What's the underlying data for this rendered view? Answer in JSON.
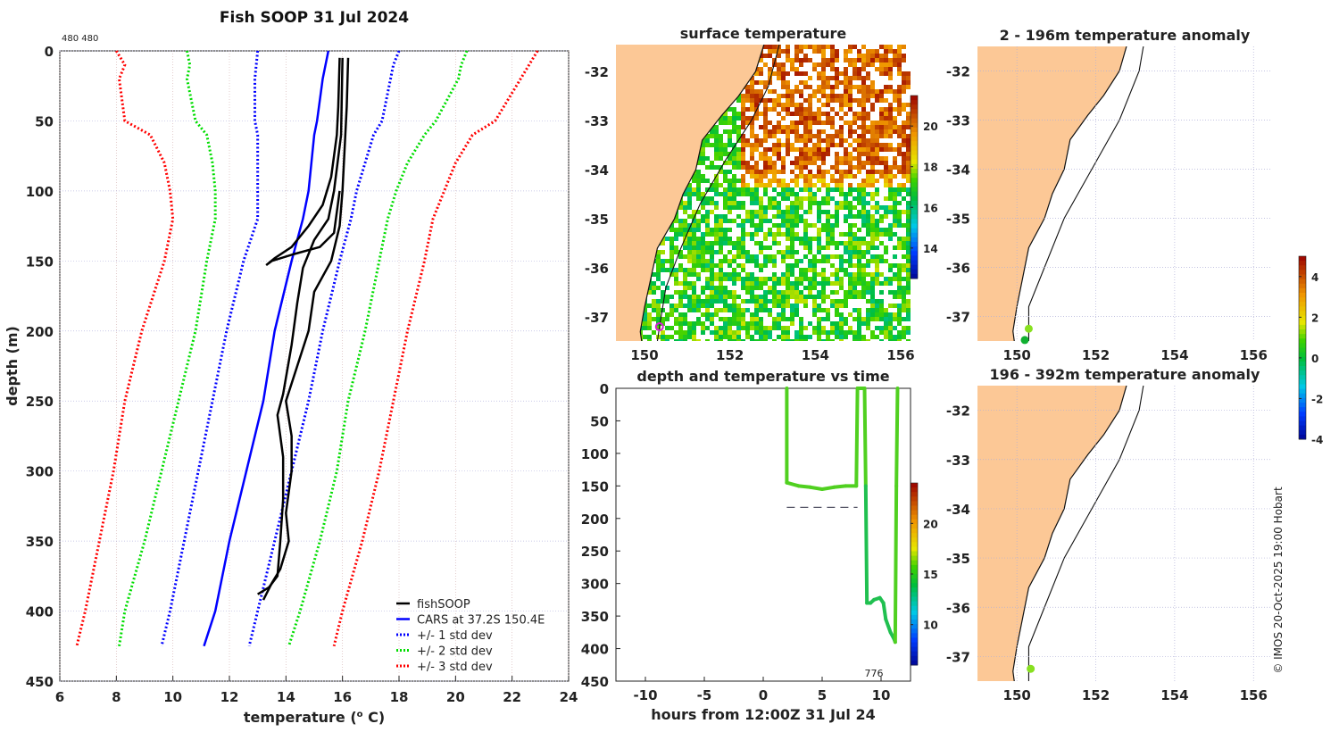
{
  "header": {
    "title": "Fish SOOP 31 Jul 2024",
    "corner_label": "480 480"
  },
  "copyright": "© IMOS 20-Oct-2025 19:00 Hobart",
  "colors": {
    "fish": "#000000",
    "cars": "#0000ff",
    "std1": "#0000ff",
    "std2": "#00dd00",
    "std3": "#ff0000",
    "land": "#fcc896",
    "grid": "#b0b0d8"
  },
  "chart_data": [
    {
      "type": "line",
      "id": "profile",
      "xlabel": "temperature (",
      "xlabel_sup": "o",
      "xlabel_end": " C)",
      "ylabel": "depth (m)",
      "xlim": [
        6,
        24
      ],
      "ylim": [
        0,
        450
      ],
      "xticks": [
        "6",
        "8",
        "10",
        "12",
        "14",
        "16",
        "18",
        "20",
        "22",
        "24"
      ],
      "yticks": [
        "0",
        "50",
        "100",
        "150",
        "200",
        "250",
        "300",
        "350",
        "400",
        "450"
      ],
      "grid": true,
      "legend_position": "bottom-right",
      "legend": [
        "fishSOOP",
        "CARS at 37.2S 150.4E",
        "+/- 1 std dev",
        "+/- 2 std dev",
        "+/- 3 std dev"
      ],
      "depths": [
        0,
        10,
        20,
        50,
        60,
        80,
        100,
        120,
        150,
        200,
        250,
        300,
        350,
        400,
        425
      ],
      "cars": [
        15.5,
        15.4,
        15.3,
        15.1,
        15.0,
        14.9,
        14.8,
        14.6,
        14.2,
        13.6,
        13.2,
        12.6,
        12.0,
        11.5,
        11.1
      ],
      "std1_lo": [
        13.0,
        12.95,
        12.9,
        12.9,
        13.0,
        13.0,
        13.0,
        13.0,
        12.5,
        11.9,
        11.4,
        10.9,
        10.4,
        9.9,
        9.6
      ],
      "std1_hi": [
        18.0,
        17.8,
        17.7,
        17.4,
        17.1,
        16.8,
        16.5,
        16.3,
        15.9,
        15.3,
        14.8,
        14.2,
        13.6,
        13.0,
        12.7
      ],
      "std2_lo": [
        10.5,
        10.6,
        10.5,
        10.8,
        11.2,
        11.4,
        11.5,
        11.5,
        11.2,
        10.8,
        10.2,
        9.6,
        9.0,
        8.3,
        8.1
      ],
      "std2_hi": [
        20.4,
        20.2,
        20.1,
        19.3,
        18.9,
        18.3,
        17.9,
        17.6,
        17.3,
        16.8,
        16.2,
        15.8,
        15.2,
        14.5,
        14.1
      ],
      "std3_lo": [
        8.0,
        8.3,
        8.1,
        8.3,
        9.2,
        9.7,
        9.9,
        10.0,
        9.7,
        8.9,
        8.3,
        7.9,
        7.4,
        6.9,
        6.6
      ],
      "std3_hi": [
        22.9,
        22.6,
        22.3,
        21.4,
        20.6,
        20.0,
        19.6,
        19.2,
        18.9,
        18.3,
        17.8,
        17.3,
        16.7,
        16.0,
        15.7
      ],
      "fish_profiles": [
        [
          [
            16.2,
            5
          ],
          [
            16.15,
            40
          ],
          [
            16.1,
            60
          ],
          [
            16.0,
            100
          ],
          [
            15.9,
            125
          ],
          [
            15.6,
            150
          ],
          [
            15.0,
            172
          ],
          [
            14.8,
            200
          ],
          [
            14.4,
            225
          ],
          [
            14.0,
            250
          ],
          [
            14.2,
            275
          ],
          [
            14.2,
            300
          ],
          [
            14.0,
            330
          ],
          [
            14.1,
            350
          ],
          [
            13.8,
            370
          ],
          [
            13.5,
            380
          ],
          [
            13.2,
            392
          ]
        ],
        [
          [
            15.9,
            5
          ],
          [
            15.85,
            40
          ],
          [
            15.8,
            60
          ],
          [
            15.6,
            90
          ],
          [
            15.3,
            110
          ],
          [
            14.8,
            125
          ],
          [
            14.2,
            140
          ],
          [
            13.6,
            148
          ],
          [
            13.3,
            153
          ],
          [
            13.5,
            150
          ],
          [
            14.3,
            145
          ],
          [
            15.2,
            140
          ],
          [
            15.7,
            130
          ],
          [
            15.9,
            100
          ]
        ],
        [
          [
            16.0,
            5
          ],
          [
            15.95,
            60
          ],
          [
            15.7,
            100
          ],
          [
            15.5,
            120
          ],
          [
            15.0,
            135
          ],
          [
            14.6,
            155
          ],
          [
            14.4,
            180
          ],
          [
            14.2,
            210
          ],
          [
            13.9,
            245
          ],
          [
            13.7,
            260
          ],
          [
            13.9,
            290
          ],
          [
            13.9,
            320
          ],
          [
            13.8,
            350
          ],
          [
            13.7,
            375
          ],
          [
            13.4,
            383
          ],
          [
            13.0,
            388
          ]
        ]
      ]
    },
    {
      "type": "heatmap",
      "id": "sst",
      "title": "surface temperature",
      "lon_lim": [
        149.33,
        156.23
      ],
      "lat_lim": [
        -37.49,
        -31.45
      ],
      "xticks": [
        "150",
        "152",
        "154",
        "156"
      ],
      "yticks": [
        "-32",
        "-33",
        "-34",
        "-35",
        "-36",
        "-37"
      ],
      "colorbar_ticks": [
        "14",
        "16",
        "18",
        "20"
      ],
      "colorbar_range": [
        12.5,
        21.5
      ]
    },
    {
      "type": "line",
      "id": "depth_time",
      "title": "depth and temperature vs time",
      "xlabel": "hours from 12:00Z 31 Jul 24",
      "xlim": [
        -12.5,
        12.5
      ],
      "ylim": [
        0,
        450
      ],
      "xticks": [
        "-10",
        "-5",
        "0",
        "5",
        "10"
      ],
      "yticks": [
        "0",
        "50",
        "100",
        "150",
        "200",
        "250",
        "300",
        "350",
        "400",
        "450"
      ],
      "annotation": "776",
      "bottom_depth_line": {
        "depth": 183,
        "from": 2,
        "to": 8
      },
      "colorbar_ticks": [
        "10",
        "15",
        "20"
      ],
      "colorbar_range": [
        6,
        24
      ],
      "track": [
        [
          2,
          0
        ],
        [
          2,
          145
        ],
        [
          3,
          150
        ],
        [
          4,
          152
        ],
        [
          5,
          155
        ],
        [
          6,
          152
        ],
        [
          7,
          150
        ],
        [
          7.9,
          150
        ],
        [
          8,
          0
        ],
        [
          8.6,
          0
        ],
        [
          8.7,
          150
        ],
        [
          8.8,
          330
        ],
        [
          9.1,
          330
        ],
        [
          9.4,
          325
        ],
        [
          9.9,
          322
        ],
        [
          10.2,
          330
        ],
        [
          10.4,
          355
        ],
        [
          10.8,
          375
        ],
        [
          11.1,
          385
        ],
        [
          11.2,
          390
        ],
        [
          11.3,
          150
        ],
        [
          11.4,
          0
        ]
      ]
    },
    {
      "type": "heatmap",
      "id": "anom_upper",
      "title": "2 - 196m temperature anomaly",
      "lon_lim": [
        149.0,
        156.47
      ],
      "lat_lim": [
        -37.5,
        -31.5
      ],
      "xticks": [
        "150",
        "152",
        "154",
        "156"
      ],
      "yticks": [
        "-32",
        "-33",
        "-34",
        "-35",
        "-36",
        "-37"
      ],
      "points": [
        [
          150.3,
          -37.25,
          "#88e020"
        ],
        [
          150.2,
          -37.48,
          "#10b030"
        ]
      ]
    },
    {
      "type": "heatmap",
      "id": "anom_lower",
      "title": "196 - 392m temperature anomaly",
      "lon_lim": [
        149.0,
        156.47
      ],
      "lat_lim": [
        -37.5,
        -31.5
      ],
      "xticks": [
        "150",
        "152",
        "154",
        "156"
      ],
      "yticks": [
        "-32",
        "-33",
        "-34",
        "-35",
        "-36",
        "-37"
      ],
      "points": [
        [
          150.35,
          -37.25,
          "#88e020"
        ]
      ],
      "colorbar_ticks": [
        "4",
        "2",
        "0",
        "-2",
        "-4"
      ],
      "colorbar_range": [
        -4,
        5
      ]
    }
  ],
  "coast": [
    [
      152.85,
      -31.3
    ],
    [
      152.6,
      -32.0
    ],
    [
      152.2,
      -32.5
    ],
    [
      151.8,
      -32.9
    ],
    [
      151.35,
      -33.4
    ],
    [
      151.2,
      -34.0
    ],
    [
      150.9,
      -34.5
    ],
    [
      150.7,
      -35.0
    ],
    [
      150.3,
      -35.6
    ],
    [
      150.15,
      -36.2
    ],
    [
      150.0,
      -36.8
    ],
    [
      149.9,
      -37.3
    ],
    [
      149.95,
      -37.6
    ]
  ],
  "ship_track_sst": [
    [
      153.2,
      -31.3
    ],
    [
      152.9,
      -32.3
    ],
    [
      152.5,
      -33.0
    ],
    [
      151.9,
      -33.8
    ],
    [
      151.3,
      -34.7
    ],
    [
      150.85,
      -35.6
    ],
    [
      150.5,
      -36.4
    ],
    [
      150.35,
      -37.2
    ],
    [
      150.3,
      -37.5
    ]
  ],
  "ship_track_anom": [
    [
      153.25,
      -31.3
    ],
    [
      153.1,
      -32.0
    ],
    [
      152.6,
      -33.0
    ],
    [
      151.9,
      -34.0
    ],
    [
      151.2,
      -35.0
    ],
    [
      150.7,
      -36.0
    ],
    [
      150.3,
      -36.8
    ],
    [
      150.3,
      -37.6
    ]
  ]
}
